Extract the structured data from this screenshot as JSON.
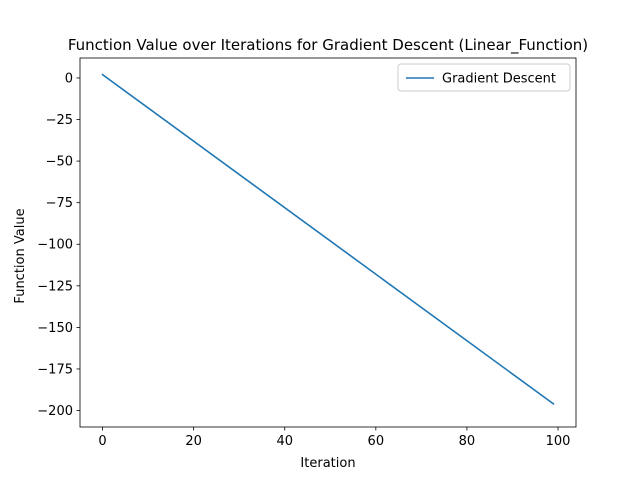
{
  "chart_data": {
    "type": "line",
    "title": "Function Value over Iterations for Gradient Descent (Linear_Function)",
    "xlabel": "Iteration",
    "ylabel": "Function Value",
    "xlim": [
      -4.95,
      103.95
    ],
    "ylim": [
      -209.9,
      12.0
    ],
    "xticks": [
      0,
      20,
      40,
      60,
      80,
      100
    ],
    "yticks": [
      0,
      -25,
      -50,
      -75,
      -100,
      -125,
      -150,
      -175,
      -200
    ],
    "xtick_labels": [
      "0",
      "20",
      "40",
      "60",
      "80",
      "100"
    ],
    "ytick_labels": [
      "0",
      "−25",
      "−50",
      "−75",
      "−100",
      "−125",
      "−150",
      "−175",
      "−200"
    ],
    "grid": false,
    "legend": {
      "position": "upper right",
      "entries": [
        "Gradient Descent"
      ]
    },
    "series": [
      {
        "name": "Gradient Descent",
        "color": "#1f77b4",
        "x": [
          0,
          99
        ],
        "y": [
          2.0,
          -196.0
        ]
      }
    ]
  }
}
